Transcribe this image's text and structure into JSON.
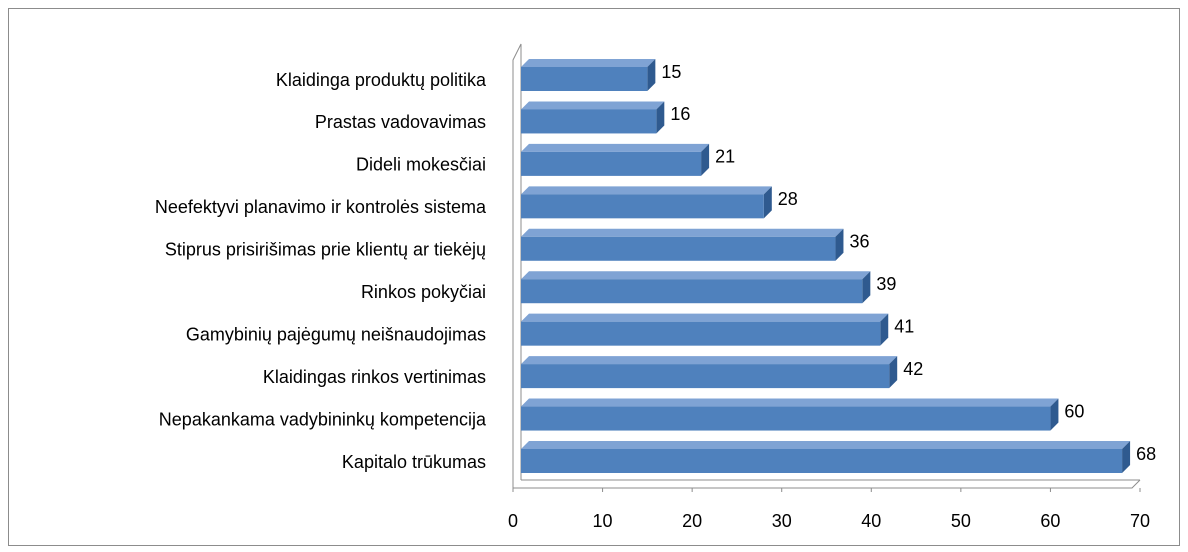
{
  "chart_data": {
    "type": "bar",
    "orientation": "horizontal",
    "categories": [
      "Klaidinga produktų politika",
      "Prastas vadovavimas",
      "Dideli mokesčiai",
      "Neefektyvi planavimo ir kontrolės sistema",
      "Stiprus prisirišimas prie klientų ar tiekėjų",
      "Rinkos pokyčiai",
      "Gamybinių pajėgumų neišnaudojimas",
      "Klaidingas rinkos vertinimas",
      "Nepakankama vadybininkų kompetencija",
      "Kapitalo trūkumas"
    ],
    "values": [
      15,
      16,
      21,
      28,
      36,
      39,
      41,
      42,
      60,
      68
    ],
    "color": "#4f81bd",
    "xlim": [
      0,
      70
    ],
    "xticks": [
      0,
      10,
      20,
      30,
      40,
      50,
      60,
      70
    ]
  }
}
